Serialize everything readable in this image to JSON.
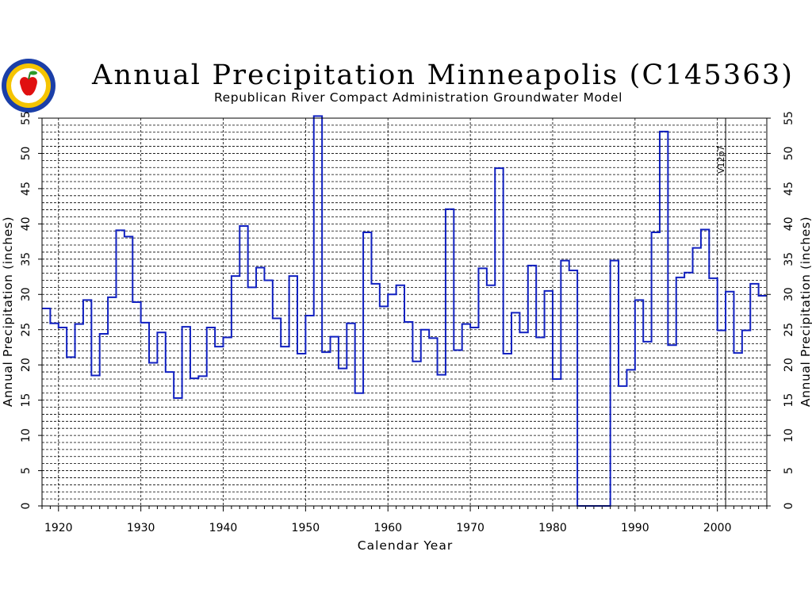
{
  "title": "Annual Precipitation Minneapolis (C145363)",
  "subtitle": "Republican River Compact Administration Groundwater Model",
  "colors": {
    "series": "#1020c0",
    "grid": "#000000",
    "background": "#ffffff"
  },
  "chart_data": {
    "type": "line",
    "step": true,
    "title": "Annual Precipitation Minneapolis (C145363)",
    "subtitle": "Republican River Compact Administration Groundwater Model",
    "xlabel": "Calendar Year",
    "ylabel": "Annual Precipitation (inches)",
    "xlim": [
      1918,
      2006
    ],
    "ylim": [
      0,
      55
    ],
    "xticks": [
      1920,
      1930,
      1940,
      1950,
      1960,
      1970,
      1980,
      1990,
      2000
    ],
    "yticks": [
      0,
      5,
      10,
      15,
      20,
      25,
      30,
      35,
      40,
      45,
      50,
      55
    ],
    "grid": true,
    "annotation": {
      "label": "V12p7",
      "x": 2001
    },
    "series": [
      {
        "x": [
          1918,
          1919,
          1920,
          1921,
          1922,
          1923,
          1924,
          1925,
          1926,
          1927,
          1928,
          1929,
          1930,
          1931,
          1932,
          1933,
          1934,
          1935,
          1936,
          1937,
          1938,
          1939,
          1940,
          1941,
          1942,
          1943,
          1944,
          1945,
          1946,
          1947,
          1948,
          1949,
          1950,
          1951,
          1952,
          1953,
          1954,
          1955,
          1956,
          1957,
          1958,
          1959,
          1960,
          1961,
          1962,
          1963,
          1964,
          1965,
          1966,
          1967,
          1968,
          1969,
          1970,
          1971,
          1972,
          1973,
          1974,
          1975,
          1976,
          1977,
          1978,
          1979,
          1980,
          1981,
          1982,
          1983,
          1984,
          1985,
          1986,
          1987,
          1988,
          1989,
          1990,
          1991,
          1992,
          1993,
          1994,
          1995,
          1996,
          1997,
          1998,
          1999,
          2000,
          2001,
          2002,
          2003,
          2004,
          2005
        ],
        "values": [
          28.0,
          25.9,
          25.3,
          21.1,
          25.8,
          29.2,
          18.5,
          24.4,
          29.6,
          39.1,
          38.2,
          28.9,
          26.0,
          20.3,
          24.6,
          19.0,
          15.3,
          25.4,
          18.1,
          18.4,
          25.3,
          22.6,
          23.9,
          32.6,
          39.7,
          31.0,
          33.8,
          32.0,
          26.6,
          22.6,
          32.6,
          21.6,
          27.0,
          55.3,
          21.8,
          24.0,
          19.5,
          25.9,
          16.0,
          38.8,
          31.5,
          28.3,
          30.0,
          31.3,
          26.1,
          20.5,
          25.0,
          23.8,
          18.6,
          42.1,
          22.1,
          25.8,
          25.3,
          33.7,
          31.3,
          47.9,
          21.6,
          27.4,
          24.6,
          34.1,
          23.9,
          30.5,
          18.0,
          34.8,
          33.4,
          0,
          0,
          0,
          0,
          34.8,
          17.0,
          19.3,
          29.2,
          23.3,
          38.8,
          53.1,
          22.8,
          32.4,
          33.1,
          36.6,
          39.2,
          32.3,
          24.9,
          30.4,
          21.7,
          24.9,
          31.5,
          29.8
        ],
        "missing_years": [
          1983,
          1984,
          1985,
          1986
        ]
      }
    ]
  }
}
